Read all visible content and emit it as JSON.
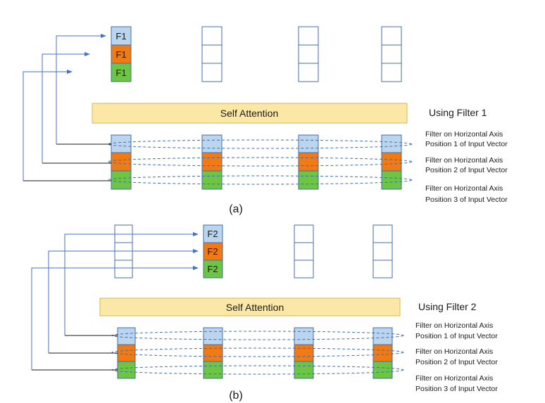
{
  "colors": {
    "blue": "#bcd5ee",
    "orange": "#f17a14",
    "green": "#6cc644",
    "arrow": "#4472c4",
    "cell_border": "#3f6fa9",
    "sa_fill": "#fbe8a6",
    "sa_border": "#d7b84f",
    "dash": "#3f6fa9"
  },
  "panel_a": {
    "output_labels": [
      "F1",
      "F1",
      "F1"
    ],
    "self_attention": "Self Attention",
    "filter_title": "Using Filter 1",
    "notes": [
      {
        "line1": "Filter on Horizontal Axis",
        "line2": "Position 1 of Input Vector"
      },
      {
        "line1": "Filter on Horizontal Axis",
        "line2": "Position 2 of Input Vector"
      },
      {
        "line1": "Filter on Horizontal Axis",
        "line2": "Position 3 of Input Vector"
      }
    ],
    "label": "(a)"
  },
  "panel_b": {
    "output_labels": [
      "F2",
      "F2",
      "F2"
    ],
    "self_attention": "Self Attention",
    "filter_title": "Using Filter 2",
    "notes": [
      {
        "line1": "Filter on Horizontal Axis",
        "line2": "Position 1 of Input Vector"
      },
      {
        "line1": "Filter on Horizontal Axis",
        "line2": "Position 2 of Input Vector"
      },
      {
        "line1": "Filter on Horizontal Axis",
        "line2": "Position 3 of Input Vector"
      }
    ],
    "label": "(b)"
  }
}
